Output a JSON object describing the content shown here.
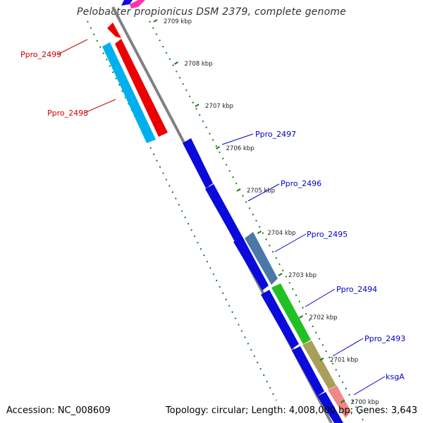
{
  "title": "Pelobacter propionicus DSM 2379, complete genome",
  "footer": {
    "accession": "Accession: NC_008609",
    "summary": "Topology: circular; Length: 4,008,000 bp; Genes: 3,643"
  },
  "ticks": [
    {
      "label": "2709 kbp",
      "kbp": 2709
    },
    {
      "label": "2708 kbp",
      "kbp": 2708
    },
    {
      "label": "2707 kbp",
      "kbp": 2707
    },
    {
      "label": "2706 kbp",
      "kbp": 2706
    },
    {
      "label": "2705 kbp",
      "kbp": 2705
    },
    {
      "label": "2704 kbp",
      "kbp": 2704
    },
    {
      "label": "2703 kbp",
      "kbp": 2703
    },
    {
      "label": "2702 kbp",
      "kbp": 2702
    },
    {
      "label": "2701 kbp",
      "kbp": 2701
    },
    {
      "label": "2700 kbp",
      "kbp": 2700
    }
  ],
  "genes": [
    {
      "name": "Ppro_2499",
      "strand": "reverse",
      "color": "#ff0000"
    },
    {
      "name": "Ppro_2498",
      "strand": "reverse",
      "color": "#ff0000"
    },
    {
      "name": "Ppro_2497",
      "strand": "forward",
      "color": "#0000ff"
    },
    {
      "name": "Ppro_2496",
      "strand": "forward",
      "color": "#0000ff"
    },
    {
      "name": "Ppro_2495",
      "strand": "forward",
      "color": "#0000ff"
    },
    {
      "name": "Ppro_2494",
      "strand": "forward",
      "color": "#0000ff"
    },
    {
      "name": "Ppro_2493",
      "strand": "forward",
      "color": "#0000ff"
    },
    {
      "name": "ksgA",
      "strand": "forward",
      "color": "#0000ff"
    }
  ],
  "colors": {
    "backbone": "#808080",
    "tick": "#1a7a1a",
    "reverse_label": "#cc0000",
    "forward_label": "#0000cc",
    "cog_blue": "#0a0adc",
    "cog_red": "#ee0000",
    "cog_cyan": "#00b0ee",
    "cog_steel": "#4a78a8",
    "cog_green": "#22c022",
    "cog_olive": "#a8a058",
    "cog_pink": "#f08888",
    "cog_magenta": "#ff33aa"
  }
}
